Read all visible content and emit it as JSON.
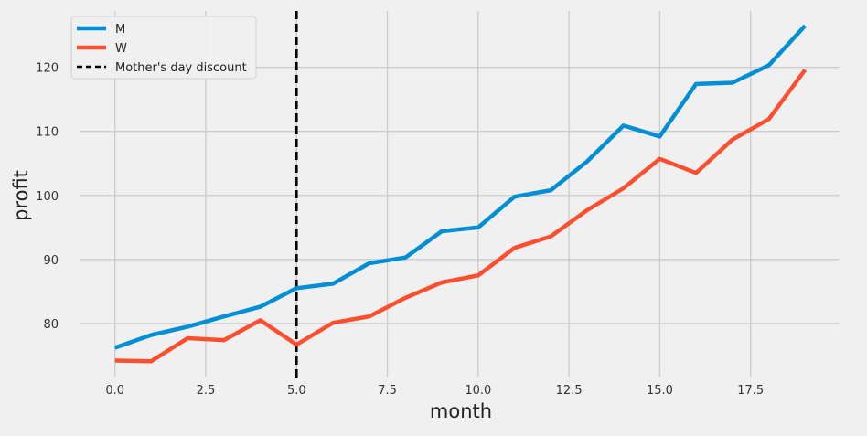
{
  "chart_data": {
    "type": "line",
    "title": "",
    "xlabel": "month",
    "ylabel": "profit",
    "x": [
      0,
      1,
      2,
      3,
      4,
      5,
      6,
      7,
      8,
      9,
      10,
      11,
      12,
      13,
      14,
      15,
      16,
      17,
      18,
      19
    ],
    "series": [
      {
        "name": "M",
        "color": "#008fd5",
        "values": [
          76.2,
          78.2,
          79.5,
          81.1,
          82.6,
          85.5,
          86.2,
          89.4,
          90.3,
          94.4,
          95.0,
          99.8,
          100.8,
          105.3,
          110.9,
          109.2,
          117.4,
          117.6,
          120.3,
          126.5
        ]
      },
      {
        "name": "W",
        "color": "#fc4f30",
        "values": [
          74.2,
          74.1,
          77.7,
          77.4,
          80.5,
          76.7,
          80.1,
          81.1,
          84.0,
          86.4,
          87.5,
          91.8,
          93.6,
          97.7,
          101.1,
          105.7,
          103.5,
          108.7,
          111.9,
          119.6
        ]
      }
    ],
    "vline": {
      "x": 5,
      "label": "Mother's day discount",
      "color": "#000000",
      "style": "dashed"
    },
    "xticks": [
      0.0,
      2.5,
      5.0,
      7.5,
      10.0,
      12.5,
      15.0,
      17.5
    ],
    "yticks": [
      80,
      90,
      100,
      110,
      120
    ],
    "xlim": [
      -0.95,
      19.95
    ],
    "ylim": [
      71.7,
      128.8
    ],
    "grid": true,
    "legend_position": "top-left",
    "background": "#f0f0f0",
    "grid_color": "#cbcbcb"
  }
}
